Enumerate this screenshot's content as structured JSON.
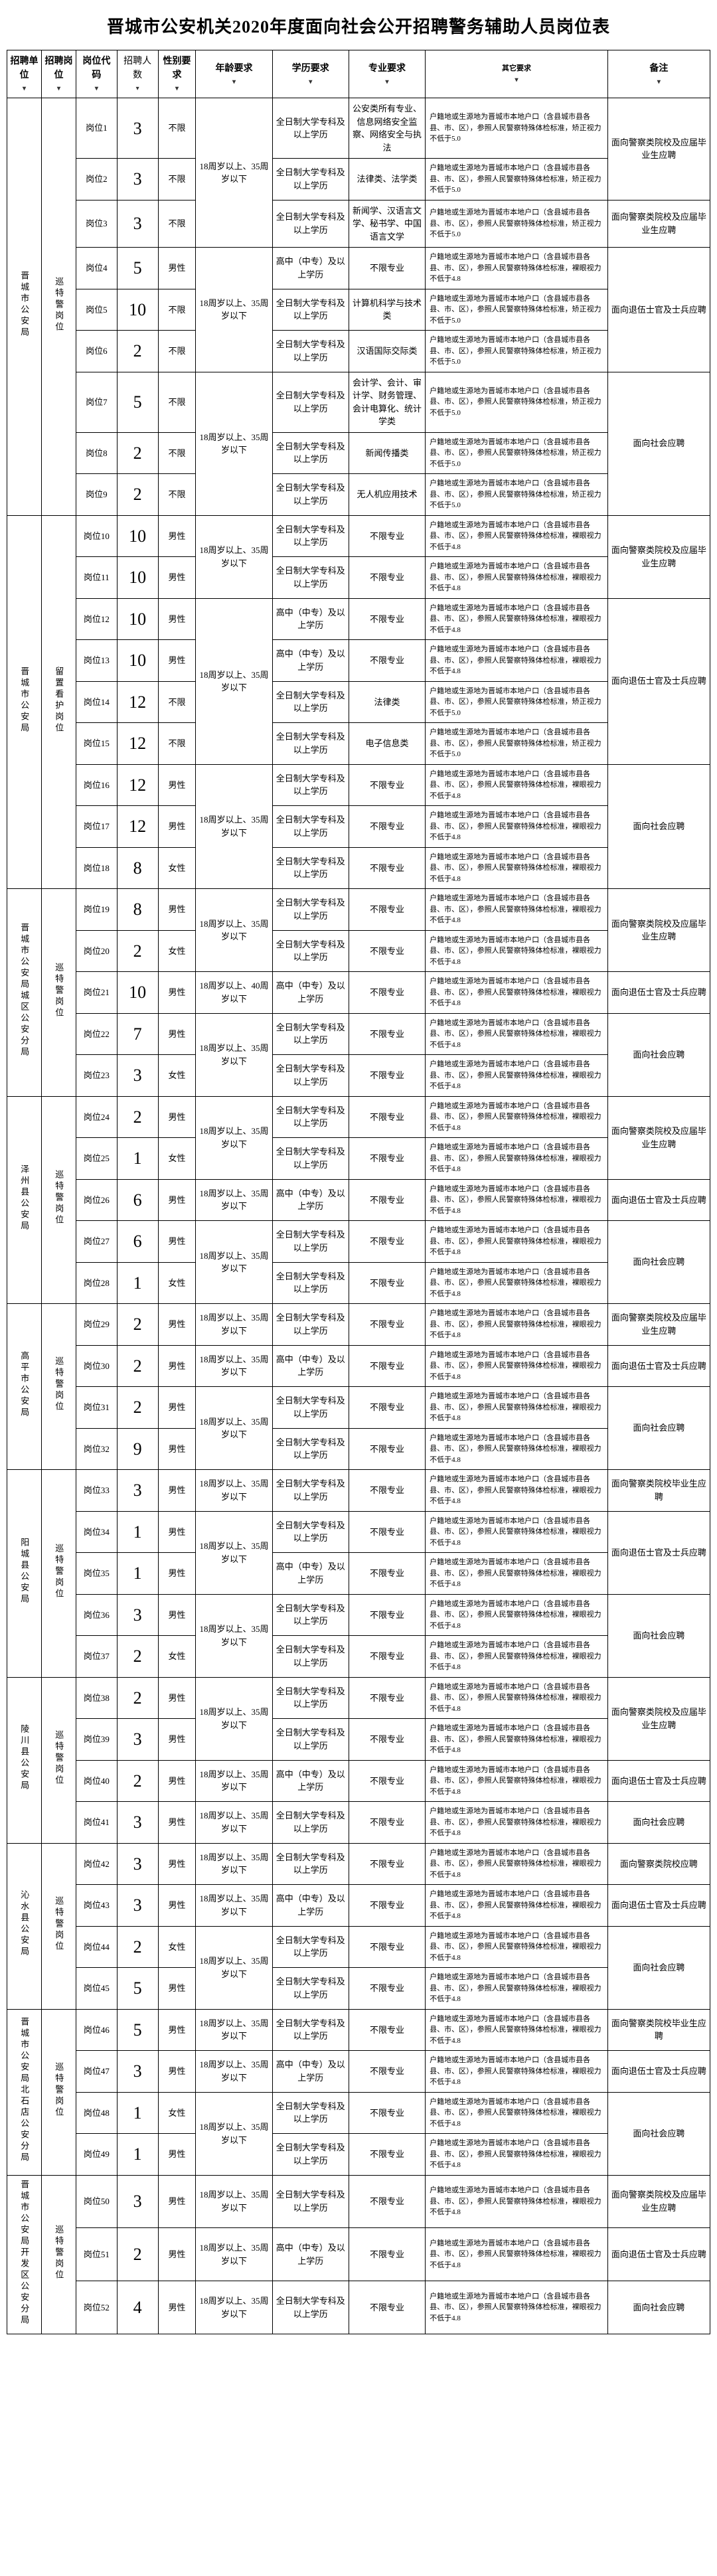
{
  "title": "晋城市公安机关2020年度面向社会公开招聘警务辅助人员岗位表",
  "headers": {
    "unit": "招聘单位",
    "post": "招聘岗位",
    "code": "岗位代码",
    "count": "招聘人数",
    "gender": "性别要求",
    "age": "年龄要求",
    "edu": "学历要求",
    "major": "专业要求",
    "other": "其它要求",
    "remark": "备注"
  },
  "edu_full_college": "全日制大学专科及以上学历",
  "edu_hs": "高中（中专）及以上学历",
  "prof_none": "不限专业",
  "age_18_35": "18周岁以上、35周岁以下",
  "age_18_40": "18周岁以上、40周岁以下",
  "remark_grad": "面向警察类院校及应届毕业生应聘",
  "remark_veteran": "面向退伍士官及士兵应聘",
  "remark_social": "面向社会应聘",
  "units": [
    {
      "unit": "晋城市公安局",
      "post": "巡特警岗位",
      "rows": [
        {
          "code": "岗位1",
          "count": "3",
          "gender": "不限",
          "age": "18周岁以上、35周岁以下",
          "edu": "全日制大学专科及以上学历",
          "major": "公安类所有专业、信息网络安全监察、网络安全与执法",
          "other": "户籍地或生源地为晋城市本地户口（含县城市县各县、市、区），参照人民警察特殊体检标准，矫正视力不低于5.0",
          "remark": "面向警察类院校及应届毕业生应聘"
        },
        {
          "code": "岗位2",
          "count": "3",
          "gender": "不限",
          "age": "",
          "edu": "全日制大学专科及以上学历",
          "major": "法律类、法学类",
          "other": "户籍地或生源地为晋城市本地户口（含县城市县各县、市、区），参照人民警察特殊体检标准，矫正视力不低于5.0",
          "remark": ""
        },
        {
          "code": "岗位3",
          "count": "3",
          "gender": "不限",
          "age": "",
          "edu": "全日制大学专科及以上学历",
          "major": "新闻学、汉语言文学、秘书学、中国语言文学",
          "other": "户籍地或生源地为晋城市本地户口（含县城市县各县、市、区），参照人民警察特殊体检标准，矫正视力不低于5.0",
          "remark": "面向警察类院校及应届毕业生应聘"
        },
        {
          "code": "岗位4",
          "count": "5",
          "gender": "男性",
          "age": "18周岁以上、35周岁以下",
          "edu": "高中（中专）及以上学历",
          "major": "不限专业",
          "other": "户籍地或生源地为晋城市本地户口（含县城市县各县、市、区），参照人民警察特殊体检标准，裸眼视力不低于4.8",
          "remark": "面向退伍士官及士兵应聘"
        },
        {
          "code": "岗位5",
          "count": "10",
          "gender": "不限",
          "age": "",
          "edu": "全日制大学专科及以上学历",
          "major": "计算机科学与技术类",
          "other": "户籍地或生源地为晋城市本地户口（含县城市县各县、市、区），参照人民警察特殊体检标准，矫正视力不低于5.0",
          "remark": ""
        },
        {
          "code": "岗位6",
          "count": "2",
          "gender": "不限",
          "age": "",
          "edu": "全日制大学专科及以上学历",
          "major": "汉语国际交际类",
          "other": "户籍地或生源地为晋城市本地户口（含县城市县各县、市、区），参照人民警察特殊体检标准，矫正视力不低于5.0",
          "remark": ""
        },
        {
          "code": "岗位7",
          "count": "5",
          "gender": "不限",
          "age": "18周岁以上、35周岁以下",
          "edu": "全日制大学专科及以上学历",
          "major": "会计学、会计、审计学、财务管理、会计电算化、统计学类",
          "other": "户籍地或生源地为晋城市本地户口（含县城市县各县、市、区），参照人民警察特殊体检标准，矫正视力不低于5.0",
          "remark": "面向社会应聘"
        },
        {
          "code": "岗位8",
          "count": "2",
          "gender": "不限",
          "age": "",
          "edu": "全日制大学专科及以上学历",
          "major": "新闻传播类",
          "other": "户籍地或生源地为晋城市本地户口（含县城市县各县、市、区），参照人民警察特殊体检标准，矫正视力不低于5.0",
          "remark": ""
        },
        {
          "code": "岗位9",
          "count": "2",
          "gender": "不限",
          "age": "",
          "edu": "全日制大学专科及以上学历",
          "major": "无人机应用技术",
          "other": "户籍地或生源地为晋城市本地户口（含县城市县各县、市、区），参照人民警察特殊体检标准，矫正视力不低于5.0",
          "remark": ""
        }
      ]
    },
    {
      "unit": "晋城市公安局",
      "post": "留置看护岗位",
      "rows": [
        {
          "code": "岗位10",
          "count": "10",
          "gender": "男性",
          "age": "18周岁以上、35周岁以下",
          "edu": "全日制大学专科及以上学历",
          "major": "不限专业",
          "other": "户籍地或生源地为晋城市本地户口（含县城市县各县、市、区），参照人民警察特殊体检标准，裸眼视力不低于4.8",
          "remark": "面向警察类院校及应届毕业生应聘"
        },
        {
          "code": "岗位11",
          "count": "10",
          "gender": "男性",
          "age": "",
          "edu": "全日制大学专科及以上学历",
          "major": "不限专业",
          "other": "户籍地或生源地为晋城市本地户口（含县城市县各县、市、区），参照人民警察特殊体检标准，裸眼视力不低于4.8",
          "remark": ""
        },
        {
          "code": "岗位12",
          "count": "10",
          "gender": "男性",
          "age": "18周岁以上、35周岁以下",
          "edu": "高中（中专）及以上学历",
          "major": "不限专业",
          "other": "户籍地或生源地为晋城市本地户口（含县城市县各县、市、区），参照人民警察特殊体检标准，裸眼视力不低于4.8",
          "remark": "面向退伍士官及士兵应聘"
        },
        {
          "code": "岗位13",
          "count": "10",
          "gender": "男性",
          "age": "",
          "edu": "高中（中专）及以上学历",
          "major": "不限专业",
          "other": "户籍地或生源地为晋城市本地户口（含县城市县各县、市、区），参照人民警察特殊体检标准，裸眼视力不低于4.8",
          "remark": ""
        },
        {
          "code": "岗位14",
          "count": "12",
          "gender": "不限",
          "age": "",
          "edu": "全日制大学专科及以上学历",
          "major": "法律类",
          "other": "户籍地或生源地为晋城市本地户口（含县城市县各县、市、区），参照人民警察特殊体检标准，矫正视力不低于5.0",
          "remark": ""
        },
        {
          "code": "岗位15",
          "count": "12",
          "gender": "不限",
          "age": "",
          "edu": "全日制大学专科及以上学历",
          "major": "电子信息类",
          "other": "户籍地或生源地为晋城市本地户口（含县城市县各县、市、区），参照人民警察特殊体检标准，矫正视力不低于5.0",
          "remark": ""
        },
        {
          "code": "岗位16",
          "count": "12",
          "gender": "男性",
          "age": "18周岁以上、35周岁以下",
          "edu": "全日制大学专科及以上学历",
          "major": "不限专业",
          "other": "户籍地或生源地为晋城市本地户口（含县城市县各县、市、区），参照人民警察特殊体检标准，裸眼视力不低于4.8",
          "remark": "面向社会应聘"
        },
        {
          "code": "岗位17",
          "count": "12",
          "gender": "男性",
          "age": "",
          "edu": "全日制大学专科及以上学历",
          "major": "不限专业",
          "other": "户籍地或生源地为晋城市本地户口（含县城市县各县、市、区），参照人民警察特殊体检标准，裸眼视力不低于4.8",
          "remark": ""
        },
        {
          "code": "岗位18",
          "count": "8",
          "gender": "女性",
          "age": "",
          "edu": "全日制大学专科及以上学历",
          "major": "不限专业",
          "other": "户籍地或生源地为晋城市本地户口（含县城市县各县、市、区），参照人民警察特殊体检标准，裸眼视力不低于4.8",
          "remark": ""
        }
      ]
    },
    {
      "unit": "晋城市公安局城区公安分局",
      "post": "巡特警岗位",
      "rows": [
        {
          "code": "岗位19",
          "count": "8",
          "gender": "男性",
          "age": "18周岁以上、35周岁以下",
          "edu": "全日制大学专科及以上学历",
          "major": "不限专业",
          "other": "户籍地或生源地为晋城市本地户口（含县城市县各县、市、区），参照人民警察特殊体检标准，裸眼视力不低于4.8",
          "remark": "面向警察类院校及应届毕业生应聘"
        },
        {
          "code": "岗位20",
          "count": "2",
          "gender": "女性",
          "age": "",
          "edu": "全日制大学专科及以上学历",
          "major": "不限专业",
          "other": "户籍地或生源地为晋城市本地户口（含县城市县各县、市、区），参照人民警察特殊体检标准，裸眼视力不低于4.8",
          "remark": ""
        },
        {
          "code": "岗位21",
          "count": "10",
          "gender": "男性",
          "age": "18周岁以上、40周岁以下",
          "edu": "高中（中专）及以上学历",
          "major": "不限专业",
          "other": "户籍地或生源地为晋城市本地户口（含县城市县各县、市、区），参照人民警察特殊体检标准，裸眼视力不低于4.8",
          "remark": "面向退伍士官及士兵应聘"
        },
        {
          "code": "岗位22",
          "count": "7",
          "gender": "男性",
          "age": "18周岁以上、35周岁以下",
          "edu": "全日制大学专科及以上学历",
          "major": "不限专业",
          "other": "户籍地或生源地为晋城市本地户口（含县城市县各县、市、区），参照人民警察特殊体检标准，裸眼视力不低于4.8",
          "remark": "面向社会应聘"
        },
        {
          "code": "岗位23",
          "count": "3",
          "gender": "女性",
          "age": "",
          "edu": "全日制大学专科及以上学历",
          "major": "不限专业",
          "other": "户籍地或生源地为晋城市本地户口（含县城市县各县、市、区），参照人民警察特殊体检标准，裸眼视力不低于4.8",
          "remark": ""
        }
      ]
    },
    {
      "unit": "泽州县公安局",
      "post": "巡特警岗位",
      "rows": [
        {
          "code": "岗位24",
          "count": "2",
          "gender": "男性",
          "age": "18周岁以上、35周岁以下",
          "edu": "全日制大学专科及以上学历",
          "major": "不限专业",
          "other": "户籍地或生源地为晋城市本地户口（含县城市县各县、市、区），参照人民警察特殊体检标准，裸眼视力不低于4.8",
          "remark": "面向警察类院校及应届毕业生应聘"
        },
        {
          "code": "岗位25",
          "count": "1",
          "gender": "女性",
          "age": "",
          "edu": "全日制大学专科及以上学历",
          "major": "不限专业",
          "other": "户籍地或生源地为晋城市本地户口（含县城市县各县、市、区），参照人民警察特殊体检标准，裸眼视力不低于4.8",
          "remark": ""
        },
        {
          "code": "岗位26",
          "count": "6",
          "gender": "男性",
          "age": "18周岁以上、35周岁以下",
          "edu": "高中（中专）及以上学历",
          "major": "不限专业",
          "other": "户籍地或生源地为晋城市本地户口（含县城市县各县、市、区），参照人民警察特殊体检标准，裸眼视力不低于4.8",
          "remark": "面向退伍士官及士兵应聘"
        },
        {
          "code": "岗位27",
          "count": "6",
          "gender": "男性",
          "age": "18周岁以上、35周岁以下",
          "edu": "全日制大学专科及以上学历",
          "major": "不限专业",
          "other": "户籍地或生源地为晋城市本地户口（含县城市县各县、市、区），参照人民警察特殊体检标准，裸眼视力不低于4.8",
          "remark": "面向社会应聘"
        },
        {
          "code": "岗位28",
          "count": "1",
          "gender": "女性",
          "age": "",
          "edu": "全日制大学专科及以上学历",
          "major": "不限专业",
          "other": "户籍地或生源地为晋城市本地户口（含县城市县各县、市、区），参照人民警察特殊体检标准，裸眼视力不低于4.8",
          "remark": ""
        }
      ]
    },
    {
      "unit": "高平市公安局",
      "post": "巡特警岗位",
      "rows": [
        {
          "code": "岗位29",
          "count": "2",
          "gender": "男性",
          "age": "18周岁以上、35周岁以下",
          "edu": "全日制大学专科及以上学历",
          "major": "不限专业",
          "other": "户籍地或生源地为晋城市本地户口（含县城市县各县、市、区），参照人民警察特殊体检标准，裸眼视力不低于4.8",
          "remark": "面向警察类院校及应届毕业生应聘"
        },
        {
          "code": "岗位30",
          "count": "2",
          "gender": "男性",
          "age": "18周岁以上、35周岁以下",
          "edu": "高中（中专）及以上学历",
          "major": "不限专业",
          "other": "户籍地或生源地为晋城市本地户口（含县城市县各县、市、区），参照人民警察特殊体检标准，裸眼视力不低于4.8",
          "remark": "面向退伍士官及士兵应聘"
        },
        {
          "code": "岗位31",
          "count": "2",
          "gender": "男性",
          "age": "18周岁以上、35周岁以下",
          "edu": "全日制大学专科及以上学历",
          "major": "不限专业",
          "other": "户籍地或生源地为晋城市本地户口（含县城市县各县、市、区），参照人民警察特殊体检标准，裸眼视力不低于4.8",
          "remark": "面向社会应聘"
        },
        {
          "code": "岗位32",
          "count": "9",
          "gender": "男性",
          "age": "",
          "edu": "全日制大学专科及以上学历",
          "major": "不限专业",
          "other": "户籍地或生源地为晋城市本地户口（含县城市县各县、市、区），参照人民警察特殊体检标准，裸眼视力不低于4.8",
          "remark": ""
        }
      ]
    },
    {
      "unit": "阳城县公安局",
      "post": "巡特警岗位",
      "rows": [
        {
          "code": "岗位33",
          "count": "3",
          "gender": "男性",
          "age": "18周岁以上、35周岁以下",
          "edu": "全日制大学专科及以上学历",
          "major": "不限专业",
          "other": "户籍地或生源地为晋城市本地户口（含县城市县各县、市、区），参照人民警察特殊体检标准，裸眼视力不低于4.8",
          "remark": "面向警察类院校毕业生应聘"
        },
        {
          "code": "岗位34",
          "count": "1",
          "gender": "男性",
          "age": "18周岁以上、35周岁以下",
          "edu": "全日制大学专科及以上学历",
          "major": "不限专业",
          "other": "户籍地或生源地为晋城市本地户口（含县城市县各县、市、区），参照人民警察特殊体检标准，裸眼视力不低于4.8",
          "remark": "面向退伍士官及士兵应聘"
        },
        {
          "code": "岗位35",
          "count": "1",
          "gender": "男性",
          "age": "",
          "edu": "高中（中专）及以上学历",
          "major": "不限专业",
          "other": "户籍地或生源地为晋城市本地户口（含县城市县各县、市、区），参照人民警察特殊体检标准，裸眼视力不低于4.8",
          "remark": ""
        },
        {
          "code": "岗位36",
          "count": "3",
          "gender": "男性",
          "age": "18周岁以上、35周岁以下",
          "edu": "全日制大学专科及以上学历",
          "major": "不限专业",
          "other": "户籍地或生源地为晋城市本地户口（含县城市县各县、市、区），参照人民警察特殊体检标准，裸眼视力不低于4.8",
          "remark": "面向社会应聘"
        },
        {
          "code": "岗位37",
          "count": "2",
          "gender": "女性",
          "age": "",
          "edu": "全日制大学专科及以上学历",
          "major": "不限专业",
          "other": "户籍地或生源地为晋城市本地户口（含县城市县各县、市、区），参照人民警察特殊体检标准，裸眼视力不低于4.8",
          "remark": ""
        }
      ]
    },
    {
      "unit": "陵川县公安局",
      "post": "巡特警岗位",
      "rows": [
        {
          "code": "岗位38",
          "count": "2",
          "gender": "男性",
          "age": "18周岁以上、35周岁以下",
          "edu": "全日制大学专科及以上学历",
          "major": "不限专业",
          "other": "户籍地或生源地为晋城市本地户口（含县城市县各县、市、区），参照人民警察特殊体检标准，裸眼视力不低于4.8",
          "remark": "面向警察类院校及应届毕业生应聘"
        },
        {
          "code": "岗位39",
          "count": "3",
          "gender": "男性",
          "age": "",
          "edu": "全日制大学专科及以上学历",
          "major": "不限专业",
          "other": "户籍地或生源地为晋城市本地户口（含县城市县各县、市、区），参照人民警察特殊体检标准，裸眼视力不低于4.8",
          "remark": ""
        },
        {
          "code": "岗位40",
          "count": "2",
          "gender": "男性",
          "age": "18周岁以上、35周岁以下",
          "edu": "高中（中专）及以上学历",
          "major": "不限专业",
          "other": "户籍地或生源地为晋城市本地户口（含县城市县各县、市、区），参照人民警察特殊体检标准，裸眼视力不低于4.8",
          "remark": "面向退伍士官及士兵应聘"
        },
        {
          "code": "岗位41",
          "count": "3",
          "gender": "男性",
          "age": "18周岁以上、35周岁以下",
          "edu": "全日制大学专科及以上学历",
          "major": "不限专业",
          "other": "户籍地或生源地为晋城市本地户口（含县城市县各县、市、区），参照人民警察特殊体检标准，裸眼视力不低于4.8",
          "remark": "面向社会应聘"
        }
      ]
    },
    {
      "unit": "沁水县公安局",
      "post": "巡特警岗位",
      "rows": [
        {
          "code": "岗位42",
          "count": "3",
          "gender": "男性",
          "age": "18周岁以上、35周岁以下",
          "edu": "全日制大学专科及以上学历",
          "major": "不限专业",
          "other": "户籍地或生源地为晋城市本地户口（含县城市县各县、市、区），参照人民警察特殊体检标准，裸眼视力不低于4.8",
          "remark": "面向警察类院校应聘"
        },
        {
          "code": "岗位43",
          "count": "3",
          "gender": "男性",
          "age": "18周岁以上、35周岁以下",
          "edu": "高中（中专）及以上学历",
          "major": "不限专业",
          "other": "户籍地或生源地为晋城市本地户口（含县城市县各县、市、区），参照人民警察特殊体检标准，裸眼视力不低于4.8",
          "remark": "面向退伍士官及士兵应聘"
        },
        {
          "code": "岗位44",
          "count": "2",
          "gender": "女性",
          "age": "18周岁以上、35周岁以下",
          "edu": "全日制大学专科及以上学历",
          "major": "不限专业",
          "other": "户籍地或生源地为晋城市本地户口（含县城市县各县、市、区），参照人民警察特殊体检标准，裸眼视力不低于4.8",
          "remark": "面向社会应聘"
        },
        {
          "code": "岗位45",
          "count": "5",
          "gender": "男性",
          "age": "",
          "edu": "全日制大学专科及以上学历",
          "major": "不限专业",
          "other": "户籍地或生源地为晋城市本地户口（含县城市县各县、市、区），参照人民警察特殊体检标准，裸眼视力不低于4.8",
          "remark": ""
        }
      ]
    },
    {
      "unit": "晋城市公安局北石店公安分局",
      "post": "巡特警岗位",
      "rows": [
        {
          "code": "岗位46",
          "count": "5",
          "gender": "男性",
          "age": "18周岁以上、35周岁以下",
          "edu": "全日制大学专科及以上学历",
          "major": "不限专业",
          "other": "户籍地或生源地为晋城市本地户口（含县城市县各县、市、区），参照人民警察特殊体检标准，裸眼视力不低于4.8",
          "remark": "面向警察类院校毕业生应聘"
        },
        {
          "code": "岗位47",
          "count": "3",
          "gender": "男性",
          "age": "18周岁以上、35周岁以下",
          "edu": "高中（中专）及以上学历",
          "major": "不限专业",
          "other": "户籍地或生源地为晋城市本地户口（含县城市县各县、市、区），参照人民警察特殊体检标准，裸眼视力不低于4.8",
          "remark": "面向退伍士官及士兵应聘"
        },
        {
          "code": "岗位48",
          "count": "1",
          "gender": "女性",
          "age": "18周岁以上、35周岁以下",
          "edu": "全日制大学专科及以上学历",
          "major": "不限专业",
          "other": "户籍地或生源地为晋城市本地户口（含县城市县各县、市、区），参照人民警察特殊体检标准，裸眼视力不低于4.8",
          "remark": "面向社会应聘"
        },
        {
          "code": "岗位49",
          "count": "1",
          "gender": "男性",
          "age": "",
          "edu": "全日制大学专科及以上学历",
          "major": "不限专业",
          "other": "户籍地或生源地为晋城市本地户口（含县城市县各县、市、区），参照人民警察特殊体检标准，裸眼视力不低于4.8",
          "remark": ""
        }
      ]
    },
    {
      "unit": "晋城市公安局开发区公安分局",
      "post": "巡特警岗位",
      "rows": [
        {
          "code": "岗位50",
          "count": "3",
          "gender": "男性",
          "age": "18周岁以上、35周岁以下",
          "edu": "全日制大学专科及以上学历",
          "major": "不限专业",
          "other": "户籍地或生源地为晋城市本地户口（含县城市县各县、市、区），参照人民警察特殊体检标准，裸眼视力不低于4.8",
          "remark": "面向警察类院校及应届毕业生应聘"
        },
        {
          "code": "岗位51",
          "count": "2",
          "gender": "男性",
          "age": "18周岁以上、35周岁以下",
          "edu": "高中（中专）及以上学历",
          "major": "不限专业",
          "other": "户籍地或生源地为晋城市本地户口（含县城市县各县、市、区），参照人民警察特殊体检标准，裸眼视力不低于4.8",
          "remark": "面向退伍士官及士兵应聘"
        },
        {
          "code": "岗位52",
          "count": "4",
          "gender": "男性",
          "age": "18周岁以上、35周岁以下",
          "edu": "全日制大学专科及以上学历",
          "major": "不限专业",
          "other": "户籍地或生源地为晋城市本地户口（含县城市县各县、市、区），参照人民警察特殊体检标准，裸眼视力不低于4.8",
          "remark": "面向社会应聘"
        }
      ]
    }
  ]
}
